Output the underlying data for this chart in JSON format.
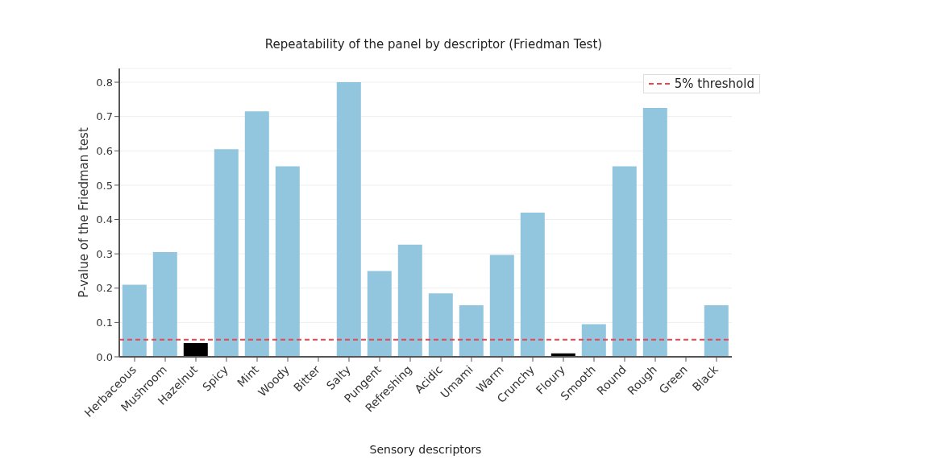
{
  "chart_data": {
    "type": "bar",
    "title": "Repeatability of the panel by descriptor (Friedman Test)",
    "xlabel": "Sensory descriptors",
    "ylabel": "P-value of the Friedman test",
    "categories": [
      "Herbaceous",
      "Mushroom",
      "Hazelnut",
      "Spicy",
      "Mint",
      "Woody",
      "Bitter",
      "Salty",
      "Pungent",
      "Refreshing",
      "Acidic",
      "Umami",
      "Warm",
      "Crunchy",
      "Floury",
      "Smooth",
      "Round",
      "Rough",
      "Green",
      "Black"
    ],
    "values": [
      0.21,
      0.305,
      0.04,
      0.605,
      0.715,
      0.555,
      0,
      0.8,
      0.25,
      0.327,
      0.185,
      0.15,
      0.297,
      0.42,
      0.01,
      0.095,
      0.555,
      0.725,
      0,
      0.15
    ],
    "colors": [
      "#92c5de",
      "#92c5de",
      "#000000",
      "#92c5de",
      "#92c5de",
      "#92c5de",
      "#92c5de",
      "#92c5de",
      "#92c5de",
      "#92c5de",
      "#92c5de",
      "#92c5de",
      "#92c5de",
      "#92c5de",
      "#000000",
      "#92c5de",
      "#92c5de",
      "#92c5de",
      "#92c5de",
      "#92c5de"
    ],
    "ylim": [
      0,
      0.84
    ],
    "yticks": [
      {
        "value": 0,
        "label": "0.0"
      },
      0.1,
      0.2,
      0.3,
      0.4,
      0.5,
      0.6,
      0.7,
      0.8
    ],
    "ref_lines": [
      {
        "axis": "y",
        "value": 0.05,
        "label": "5% threshold",
        "color": "#e8484d",
        "line_style": "dashed"
      }
    ],
    "grid": "y",
    "legend": "top right"
  }
}
